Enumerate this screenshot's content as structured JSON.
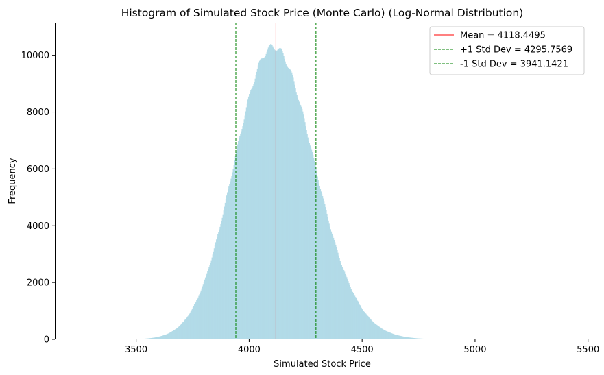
{
  "chart_data": {
    "type": "histogram",
    "title": "Histogram of Simulated Stock Price (Monte Carlo) (Log-Normal Distribution)",
    "xlabel": "Simulated Stock Price",
    "ylabel": "Frequency",
    "xlim": [
      3140,
      5510
    ],
    "ylim": [
      0,
      11150
    ],
    "xticks": [
      3500,
      4000,
      4500,
      5000,
      5500
    ],
    "yticks": [
      0,
      2000,
      4000,
      6000,
      8000,
      10000
    ],
    "grid": false,
    "legend_position": "top-right",
    "bar_color": "#add8e6",
    "distribution": {
      "kind": "lognormal",
      "x_min": 3380,
      "x_max": 5000,
      "bins": 500,
      "peak_frequency": 10300,
      "mean": 4118.4495,
      "std": 177.3074
    },
    "reference_lines": [
      {
        "name": "Mean = 4118.4495",
        "x": 4118.4495,
        "color": "#ff0000",
        "style": "solid"
      },
      {
        "name": "+1 Std Dev = 4295.7569",
        "x": 4295.7569,
        "color": "#008000",
        "style": "dashed"
      },
      {
        "name": "-1 Std Dev = 3941.1421",
        "x": 3941.1421,
        "color": "#008000",
        "style": "dashed"
      }
    ]
  }
}
